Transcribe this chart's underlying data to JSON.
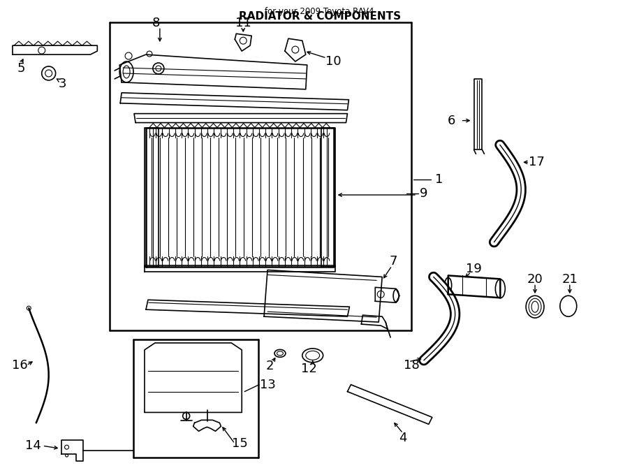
{
  "title": "RADIATOR & COMPONENTS",
  "subtitle": "for your 2009 Toyota RAV4",
  "bg_color": "#ffffff",
  "line_color": "#000000",
  "text_color": "#000000",
  "label_fontsize": 13,
  "fig_width": 9.0,
  "fig_height": 6.61
}
